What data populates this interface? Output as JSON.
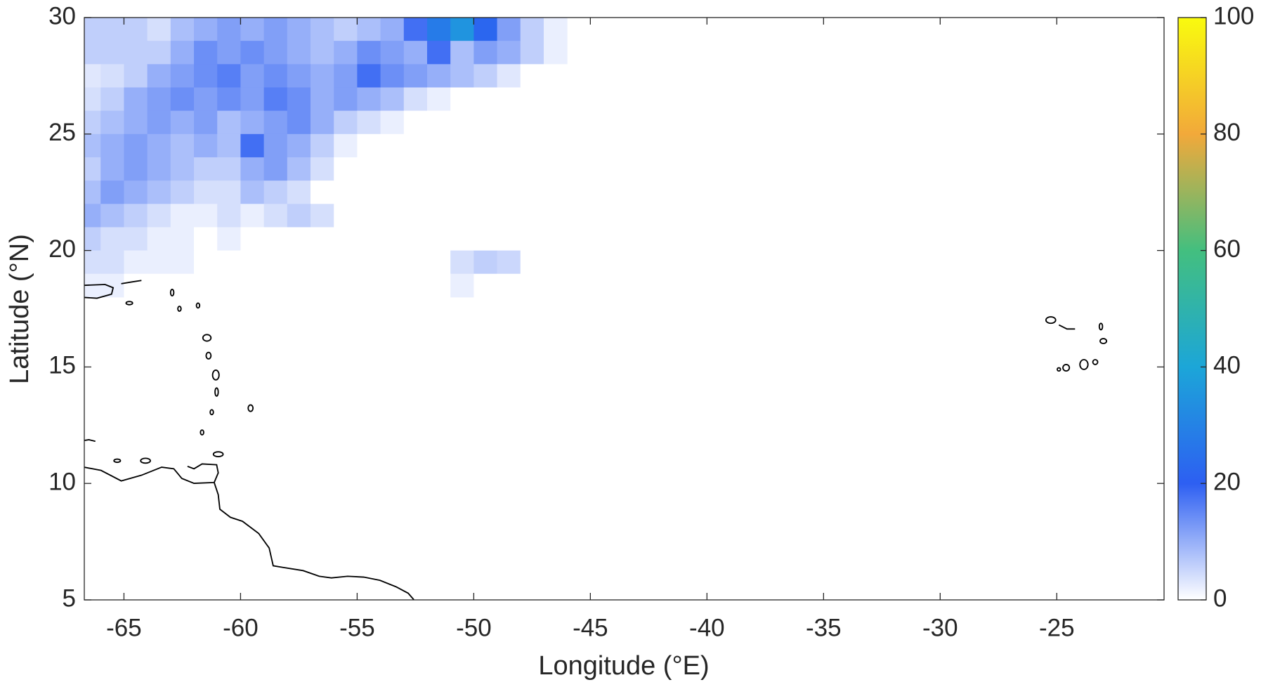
{
  "chart_data": {
    "type": "heatmap",
    "x_label": "Longitude (°E)",
    "y_label": "Latitude (°N)",
    "xlim": [
      -66.7,
      -20.4
    ],
    "ylim": [
      5,
      30
    ],
    "xticks": [
      -65,
      -60,
      -55,
      -50,
      -45,
      -40,
      -35,
      -30,
      -25
    ],
    "yticks": [
      5,
      10,
      15,
      20,
      25,
      30
    ],
    "clim": [
      0,
      100
    ],
    "cticks": [
      0,
      20,
      40,
      60,
      80,
      100
    ],
    "colormap": [
      "#ffffff",
      "#2d5ff2",
      "#1ca6d8",
      "#43bf7f",
      "#f2a93a",
      "#f9fb0e"
    ],
    "x": [
      -66.5,
      -65.5,
      -64.5,
      -63.5,
      -62.5,
      -61.5,
      -60.5,
      -59.5,
      -58.5,
      -57.5,
      -56.5,
      -55.5,
      -54.5,
      -53.5,
      -52.5,
      -51.5,
      -50.5,
      -49.5,
      -48.5,
      -47.5,
      -46.5
    ],
    "y": [
      29.5,
      28.5,
      27.5,
      26.5,
      25.5,
      24.5,
      23.5,
      22.5,
      21.5,
      20.5,
      19.5,
      18.5
    ],
    "z": [
      [
        6,
        6,
        6,
        4,
        8,
        10,
        12,
        10,
        12,
        10,
        8,
        6,
        8,
        10,
        18,
        28,
        35,
        22,
        12,
        6,
        2
      ],
      [
        6,
        6,
        6,
        6,
        10,
        14,
        12,
        14,
        12,
        10,
        8,
        10,
        14,
        12,
        10,
        18,
        8,
        12,
        10,
        6,
        2
      ],
      [
        3,
        4,
        6,
        10,
        12,
        14,
        16,
        12,
        14,
        12,
        10,
        12,
        18,
        14,
        12,
        10,
        8,
        6,
        3,
        0,
        0
      ],
      [
        4,
        6,
        10,
        12,
        14,
        12,
        14,
        12,
        16,
        14,
        10,
        12,
        10,
        8,
        4,
        2,
        0,
        0,
        0,
        0,
        0
      ],
      [
        6,
        8,
        10,
        12,
        10,
        12,
        8,
        10,
        12,
        14,
        10,
        6,
        4,
        2,
        0,
        0,
        0,
        0,
        0,
        0,
        0
      ],
      [
        8,
        10,
        12,
        10,
        8,
        10,
        8,
        18,
        12,
        10,
        6,
        2,
        0,
        0,
        0,
        0,
        0,
        0,
        0,
        0,
        0
      ],
      [
        6,
        10,
        12,
        10,
        8,
        6,
        6,
        10,
        12,
        8,
        4,
        0,
        0,
        0,
        0,
        0,
        0,
        0,
        0,
        0,
        0
      ],
      [
        8,
        12,
        10,
        8,
        6,
        4,
        4,
        8,
        6,
        4,
        0,
        0,
        0,
        0,
        0,
        0,
        0,
        0,
        0,
        0,
        0
      ],
      [
        10,
        8,
        6,
        4,
        2,
        2,
        4,
        2,
        4,
        6,
        4,
        0,
        0,
        0,
        0,
        0,
        0,
        0,
        0,
        0,
        0
      ],
      [
        6,
        4,
        4,
        2,
        2,
        0,
        2,
        0,
        0,
        0,
        0,
        0,
        0,
        0,
        0,
        0,
        0,
        0,
        0,
        0,
        0
      ],
      [
        4,
        4,
        2,
        2,
        2,
        0,
        0,
        0,
        0,
        0,
        0,
        0,
        0,
        0,
        0,
        0,
        4,
        6,
        5,
        0,
        0
      ],
      [
        2,
        2,
        0,
        0,
        0,
        0,
        0,
        0,
        0,
        0,
        0,
        0,
        0,
        0,
        0,
        0,
        2,
        0,
        0,
        0,
        0
      ]
    ]
  }
}
